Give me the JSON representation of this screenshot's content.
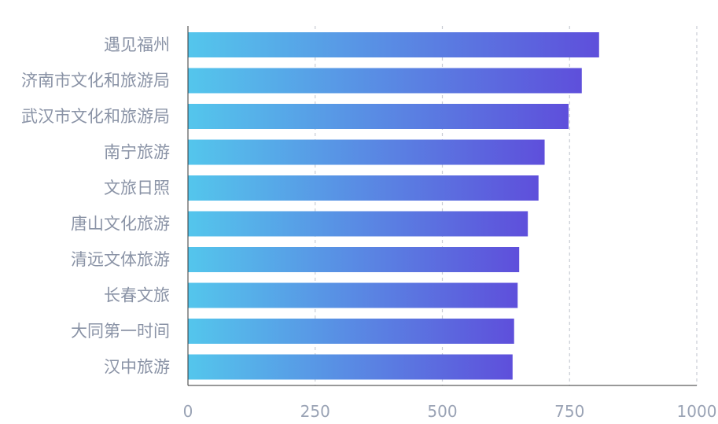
{
  "chart_data": {
    "type": "bar",
    "orientation": "horizontal",
    "categories": [
      "遇见福州",
      "济南市文化和旅游局",
      "武汉市文化和旅游局",
      "南宁旅游",
      "文旅日照",
      "唐山文化旅游",
      "清远文体旅游",
      "长春文旅",
      "大同第一时间",
      "汉中旅游"
    ],
    "values": [
      808,
      774,
      748,
      701,
      689,
      668,
      651,
      648,
      641,
      638
    ],
    "xlim": [
      0,
      1000
    ],
    "xticks": [
      0,
      250,
      500,
      750,
      1000
    ],
    "xtick_labels": [
      "0",
      "250",
      "500",
      "750",
      "1000"
    ],
    "grid": "vertical dashed",
    "colors": {
      "bar_gradient_start": "#54c6ec",
      "bar_gradient_end": "#5e4fdb",
      "grid": "#c8ccd4",
      "axis": "#333333",
      "label": "#8a93a6"
    }
  }
}
